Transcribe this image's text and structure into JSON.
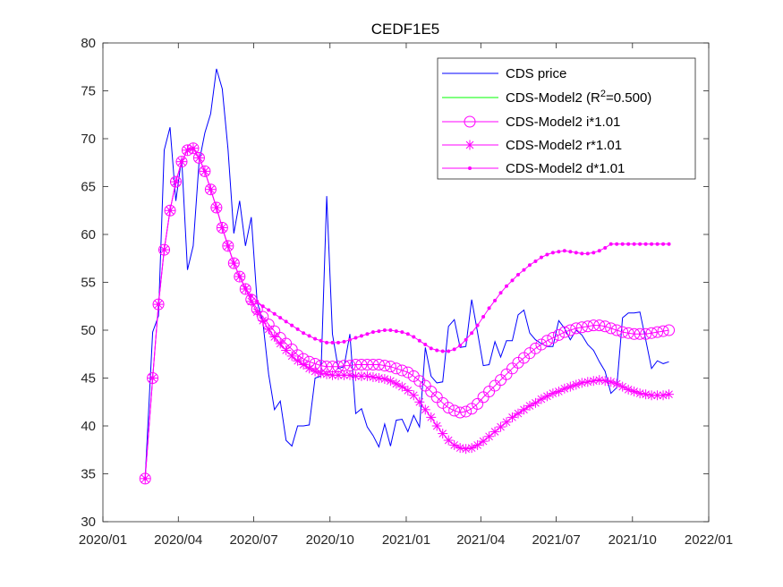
{
  "chart_data": {
    "type": "line",
    "title": "CEDF1E5",
    "xlabel": "",
    "ylabel": "",
    "xlim": [
      "2020-01-01",
      "2022-01-01"
    ],
    "ylim": [
      30,
      80
    ],
    "x_ticks": [
      "2020/01",
      "2020/04",
      "2020/07",
      "2020/10",
      "2021/01",
      "2021/04",
      "2021/07",
      "2021/10",
      "2022/01"
    ],
    "y_ticks": [
      30,
      35,
      40,
      45,
      50,
      55,
      60,
      65,
      70,
      75,
      80
    ],
    "legend_position": "top-right",
    "legend": [
      {
        "id": "price",
        "text": "CDS price",
        "color": "#0000ff",
        "marker": "none"
      },
      {
        "id": "model",
        "text_before": "CDS-Model2 (R",
        "superscript": "2",
        "text_after": "=0.500)",
        "color": "#00ff00",
        "marker": "none"
      },
      {
        "id": "i",
        "text": "CDS-Model2 i*1.01",
        "color": "#ff00ff",
        "marker": "circle"
      },
      {
        "id": "r",
        "text": "CDS-Model2 r*1.01",
        "color": "#ff00ff",
        "marker": "star"
      },
      {
        "id": "d",
        "text": "CDS-Model2 d*1.01",
        "color": "#ff00ff",
        "marker": "dot"
      }
    ],
    "series": [
      {
        "name": "CDS price",
        "x": [
          "2020-02-21",
          "2020-03-01",
          "2020-03-08",
          "2020-03-15",
          "2020-03-22",
          "2020-03-29",
          "2020-04-05",
          "2020-04-12",
          "2020-04-19",
          "2020-04-26",
          "2020-05-03",
          "2020-05-10",
          "2020-05-17",
          "2020-05-24",
          "2020-05-31",
          "2020-06-07",
          "2020-06-14",
          "2020-06-21",
          "2020-06-28",
          "2020-07-05",
          "2020-07-12",
          "2020-07-19",
          "2020-07-26",
          "2020-08-02",
          "2020-08-09",
          "2020-08-16",
          "2020-08-23",
          "2020-08-30",
          "2020-09-06",
          "2020-09-13",
          "2020-09-20",
          "2020-09-27",
          "2020-10-04",
          "2020-10-11",
          "2020-10-18",
          "2020-10-25",
          "2020-11-01",
          "2020-11-08",
          "2020-11-15",
          "2020-11-22",
          "2020-11-29",
          "2020-12-06",
          "2020-12-13",
          "2020-12-20",
          "2020-12-27",
          "2021-01-03",
          "2021-01-10",
          "2021-01-17",
          "2021-01-24",
          "2021-01-31",
          "2021-02-07",
          "2021-02-14",
          "2021-02-21",
          "2021-02-28",
          "2021-03-07",
          "2021-03-14",
          "2021-03-21",
          "2021-03-28",
          "2021-04-04",
          "2021-04-11",
          "2021-04-18",
          "2021-04-25",
          "2021-05-02",
          "2021-05-09",
          "2021-05-16",
          "2021-05-23",
          "2021-05-30",
          "2021-06-06",
          "2021-06-13",
          "2021-06-20",
          "2021-06-27",
          "2021-07-04",
          "2021-07-11",
          "2021-07-18",
          "2021-07-25",
          "2021-08-01",
          "2021-08-08",
          "2021-08-15",
          "2021-08-22",
          "2021-08-29",
          "2021-09-05",
          "2021-09-12",
          "2021-09-19",
          "2021-09-26",
          "2021-10-03",
          "2021-10-10",
          "2021-10-17",
          "2021-10-24",
          "2021-10-31",
          "2021-11-07",
          "2021-11-14"
        ],
        "y": [
          34.5,
          49.8,
          51.5,
          68.8,
          71.2,
          63.5,
          68.0,
          56.3,
          58.8,
          67.5,
          70.6,
          72.6,
          77.3,
          75.2,
          68.9,
          60.1,
          63.5,
          58.8,
          61.8,
          53.0,
          50.9,
          45.4,
          41.7,
          42.6,
          38.5,
          37.9,
          40.0,
          40.0,
          40.1,
          45.0,
          45.2,
          64.0,
          49.6,
          46.0,
          46.2,
          49.6,
          41.3,
          41.8,
          39.9,
          39.0,
          37.8,
          40.2,
          37.9,
          40.6,
          40.7,
          39.4,
          41.1,
          39.9,
          48.2,
          45.2,
          44.5,
          44.6,
          50.4,
          51.1,
          48.2,
          48.3,
          53.2,
          49.8,
          46.3,
          46.4,
          48.8,
          47.2,
          48.9,
          48.9,
          51.6,
          52.1,
          49.7,
          49.0,
          48.6,
          48.3,
          48.3,
          51.0,
          50.2,
          49.0,
          50.0,
          49.5,
          48.5,
          47.9,
          46.7,
          45.7,
          43.4,
          44.0,
          51.3,
          51.8,
          51.8,
          51.9,
          49.0,
          46.0,
          46.8,
          46.5,
          46.7
        ]
      },
      {
        "name": "CDS-Model2 i*1.01",
        "x": [
          "2020-02-21",
          "2020-03-01",
          "2020-03-08",
          "2020-03-15",
          "2020-03-22",
          "2020-03-29",
          "2020-04-05",
          "2020-04-12",
          "2020-04-19",
          "2020-04-26",
          "2020-05-03",
          "2020-05-10",
          "2020-05-17",
          "2020-05-24",
          "2020-05-31",
          "2020-06-07",
          "2020-06-14",
          "2020-06-21",
          "2020-06-28",
          "2020-07-05",
          "2020-07-12",
          "2020-07-19",
          "2020-07-26",
          "2020-08-02",
          "2020-08-09",
          "2020-08-16",
          "2020-08-23",
          "2020-08-30",
          "2020-09-06",
          "2020-09-13",
          "2020-09-20",
          "2020-09-27",
          "2020-10-04",
          "2020-10-11",
          "2020-10-18",
          "2020-10-25",
          "2020-11-01",
          "2020-11-08",
          "2020-11-15",
          "2020-11-22",
          "2020-11-29",
          "2020-12-06",
          "2020-12-13",
          "2020-12-20",
          "2020-12-27",
          "2021-01-03",
          "2021-01-10",
          "2021-01-17",
          "2021-01-24",
          "2021-01-31",
          "2021-02-07",
          "2021-02-14",
          "2021-02-21",
          "2021-02-28",
          "2021-03-07",
          "2021-03-14",
          "2021-03-21",
          "2021-03-28",
          "2021-04-04",
          "2021-04-11",
          "2021-04-18",
          "2021-04-25",
          "2021-05-02",
          "2021-05-09",
          "2021-05-16",
          "2021-05-23",
          "2021-05-30",
          "2021-06-06",
          "2021-06-13",
          "2021-06-20",
          "2021-06-27",
          "2021-07-04",
          "2021-07-11",
          "2021-07-18",
          "2021-07-25",
          "2021-08-01",
          "2021-08-08",
          "2021-08-15",
          "2021-08-22",
          "2021-08-29",
          "2021-09-05",
          "2021-09-12",
          "2021-09-19",
          "2021-09-26",
          "2021-10-03",
          "2021-10-10",
          "2021-10-17",
          "2021-10-24",
          "2021-10-31",
          "2021-11-07",
          "2021-11-14"
        ],
        "y": [
          34.5,
          45.0,
          52.7,
          58.4,
          62.5,
          65.5,
          67.6,
          68.8,
          69.0,
          68.0,
          66.6,
          64.7,
          62.8,
          60.7,
          58.8,
          57.0,
          55.6,
          54.3,
          53.2,
          52.2,
          51.4,
          50.6,
          49.9,
          49.2,
          48.6,
          48.0,
          47.4,
          47.0,
          46.7,
          46.5,
          46.3,
          46.2,
          46.2,
          46.2,
          46.3,
          46.3,
          46.4,
          46.4,
          46.4,
          46.4,
          46.4,
          46.3,
          46.2,
          46.0,
          45.8,
          45.6,
          45.2,
          44.7,
          44.2,
          43.6,
          43.0,
          42.4,
          41.9,
          41.6,
          41.4,
          41.5,
          41.8,
          42.3,
          43.0,
          43.6,
          44.2,
          44.8,
          45.4,
          46.0,
          46.6,
          47.1,
          47.6,
          48.1,
          48.5,
          48.9,
          49.2,
          49.5,
          49.8,
          50.0,
          50.2,
          50.3,
          50.4,
          50.5,
          50.5,
          50.4,
          50.2,
          50.0,
          49.8,
          49.7,
          49.6,
          49.6,
          49.6,
          49.7,
          49.8,
          49.9,
          50.0
        ]
      },
      {
        "name": "CDS-Model2 r*1.01",
        "x": [
          "2020-02-21",
          "2020-03-01",
          "2020-03-08",
          "2020-03-15",
          "2020-03-22",
          "2020-03-29",
          "2020-04-05",
          "2020-04-12",
          "2020-04-19",
          "2020-04-26",
          "2020-05-03",
          "2020-05-10",
          "2020-05-17",
          "2020-05-24",
          "2020-05-31",
          "2020-06-07",
          "2020-06-14",
          "2020-06-21",
          "2020-06-28",
          "2020-07-05",
          "2020-07-12",
          "2020-07-19",
          "2020-07-26",
          "2020-08-02",
          "2020-08-09",
          "2020-08-16",
          "2020-08-23",
          "2020-08-30",
          "2020-09-06",
          "2020-09-13",
          "2020-09-20",
          "2020-09-27",
          "2020-10-04",
          "2020-10-11",
          "2020-10-18",
          "2020-10-25",
          "2020-11-01",
          "2020-11-08",
          "2020-11-15",
          "2020-11-22",
          "2020-11-29",
          "2020-12-06",
          "2020-12-13",
          "2020-12-20",
          "2020-12-27",
          "2021-01-03",
          "2021-01-10",
          "2021-01-17",
          "2021-01-24",
          "2021-01-31",
          "2021-02-07",
          "2021-02-14",
          "2021-02-21",
          "2021-02-28",
          "2021-03-07",
          "2021-03-14",
          "2021-03-21",
          "2021-03-28",
          "2021-04-04",
          "2021-04-11",
          "2021-04-18",
          "2021-04-25",
          "2021-05-02",
          "2021-05-09",
          "2021-05-16",
          "2021-05-23",
          "2021-05-30",
          "2021-06-06",
          "2021-06-13",
          "2021-06-20",
          "2021-06-27",
          "2021-07-04",
          "2021-07-11",
          "2021-07-18",
          "2021-07-25",
          "2021-08-01",
          "2021-08-08",
          "2021-08-15",
          "2021-08-22",
          "2021-08-29",
          "2021-09-05",
          "2021-09-12",
          "2021-09-19",
          "2021-09-26",
          "2021-10-03",
          "2021-10-10",
          "2021-10-17",
          "2021-10-24",
          "2021-10-31",
          "2021-11-07",
          "2021-11-14"
        ],
        "y": [
          34.5,
          45.0,
          52.7,
          58.4,
          62.5,
          65.5,
          67.6,
          68.8,
          69.0,
          68.0,
          66.6,
          64.7,
          62.8,
          60.7,
          58.8,
          57.0,
          55.6,
          54.3,
          53.0,
          51.9,
          51.0,
          50.1,
          49.3,
          48.6,
          47.9,
          47.3,
          46.8,
          46.4,
          46.0,
          45.7,
          45.5,
          45.4,
          45.3,
          45.3,
          45.3,
          45.3,
          45.2,
          45.2,
          45.2,
          45.1,
          45.0,
          44.9,
          44.7,
          44.4,
          44.1,
          43.7,
          43.2,
          42.5,
          41.7,
          40.9,
          40.0,
          39.2,
          38.5,
          38.0,
          37.7,
          37.6,
          37.7,
          38.0,
          38.4,
          38.9,
          39.4,
          39.9,
          40.4,
          40.9,
          41.3,
          41.7,
          42.1,
          42.4,
          42.8,
          43.1,
          43.4,
          43.6,
          43.9,
          44.1,
          44.3,
          44.5,
          44.6,
          44.7,
          44.8,
          44.7,
          44.6,
          44.4,
          44.1,
          43.8,
          43.6,
          43.4,
          43.3,
          43.2,
          43.2,
          43.2,
          43.3
        ]
      },
      {
        "name": "CDS-Model2 d*1.01",
        "x": [
          "2020-02-21",
          "2020-03-01",
          "2020-03-08",
          "2020-03-15",
          "2020-03-22",
          "2020-03-29",
          "2020-04-05",
          "2020-04-12",
          "2020-04-19",
          "2020-04-26",
          "2020-05-03",
          "2020-05-10",
          "2020-05-17",
          "2020-05-24",
          "2020-05-31",
          "2020-06-07",
          "2020-06-14",
          "2020-06-21",
          "2020-06-28",
          "2020-07-05",
          "2020-07-12",
          "2020-07-19",
          "2020-07-26",
          "2020-08-02",
          "2020-08-09",
          "2020-08-16",
          "2020-08-23",
          "2020-08-30",
          "2020-09-06",
          "2020-09-13",
          "2020-09-20",
          "2020-09-27",
          "2020-10-04",
          "2020-10-11",
          "2020-10-18",
          "2020-10-25",
          "2020-11-01",
          "2020-11-08",
          "2020-11-15",
          "2020-11-22",
          "2020-11-29",
          "2020-12-06",
          "2020-12-13",
          "2020-12-20",
          "2020-12-27",
          "2021-01-03",
          "2021-01-10",
          "2021-01-17",
          "2021-01-24",
          "2021-01-31",
          "2021-02-07",
          "2021-02-14",
          "2021-02-21",
          "2021-02-28",
          "2021-03-07",
          "2021-03-14",
          "2021-03-21",
          "2021-03-28",
          "2021-04-04",
          "2021-04-11",
          "2021-04-18",
          "2021-04-25",
          "2021-05-02",
          "2021-05-09",
          "2021-05-16",
          "2021-05-23",
          "2021-05-30",
          "2021-06-06",
          "2021-06-13",
          "2021-06-20",
          "2021-06-27",
          "2021-07-04",
          "2021-07-11",
          "2021-07-18",
          "2021-07-25",
          "2021-08-01",
          "2021-08-08",
          "2021-08-15",
          "2021-08-22",
          "2021-08-29",
          "2021-09-05",
          "2021-09-12",
          "2021-09-19",
          "2021-09-26",
          "2021-10-03",
          "2021-10-10",
          "2021-10-17",
          "2021-10-24",
          "2021-10-31",
          "2021-11-07",
          "2021-11-14"
        ],
        "y": [
          34.5,
          45.0,
          52.7,
          58.4,
          62.5,
          65.5,
          67.6,
          68.8,
          69.0,
          68.0,
          66.6,
          64.7,
          62.8,
          60.7,
          58.8,
          57.0,
          55.6,
          54.4,
          53.6,
          53.0,
          52.5,
          52.1,
          51.7,
          51.3,
          50.9,
          50.5,
          50.1,
          49.7,
          49.4,
          49.1,
          48.9,
          48.7,
          48.7,
          48.7,
          48.8,
          49.0,
          49.2,
          49.4,
          49.6,
          49.8,
          49.9,
          50.0,
          50.0,
          49.9,
          49.8,
          49.6,
          49.3,
          48.9,
          48.5,
          48.1,
          47.9,
          47.8,
          47.8,
          48.0,
          48.4,
          49.0,
          49.7,
          50.5,
          51.4,
          52.3,
          53.1,
          53.9,
          54.6,
          55.2,
          55.8,
          56.3,
          56.8,
          57.2,
          57.6,
          57.9,
          58.1,
          58.2,
          58.3,
          58.2,
          58.1,
          58.0,
          58.0,
          58.1,
          58.3,
          58.6,
          59.0,
          59.0,
          59.0,
          59.0,
          59.0,
          59.0,
          59.0,
          59.0,
          59.0,
          59.0,
          59.0
        ]
      }
    ]
  }
}
